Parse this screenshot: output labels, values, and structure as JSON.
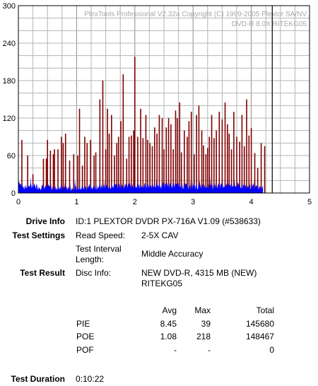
{
  "chart_data": {
    "type": "bar",
    "watermark_line1": "PlexTools Professional V2.32a Copyright (C) 1999-2005 Plextor SA/NV",
    "watermark_line2": "DVD-R    8.0X    RITEKG05",
    "xlim": [
      0,
      5
    ],
    "ylim": [
      0,
      300
    ],
    "x_ticks": [
      "0",
      "1",
      "2",
      "3",
      "4",
      "5"
    ],
    "y_ticks": [
      "0",
      "60",
      "120",
      "180",
      "240",
      "300"
    ],
    "grid": true,
    "cursor_x": 4.36,
    "colors": {
      "pie": "#0000ff",
      "poe": "#800000",
      "cursor": "#000000",
      "grid": "#b4b4b4"
    },
    "series": [
      {
        "name": "PIE",
        "approx_level": 8.45,
        "max": 39,
        "x": [
          0.0,
          0.03,
          0.06,
          0.1,
          0.2,
          0.35,
          0.5,
          0.75,
          1.0,
          1.2,
          1.5,
          1.8,
          2.0,
          2.3,
          2.6,
          3.0,
          3.3,
          3.6,
          4.0,
          4.2
        ],
        "values": [
          22,
          15,
          10,
          8,
          12,
          10,
          9,
          8,
          8,
          9,
          10,
          12,
          11,
          11,
          13,
          10,
          11,
          12,
          10,
          9
        ]
      },
      {
        "name": "POE",
        "x": [
          0.06,
          0.16,
          0.25,
          0.43,
          0.48,
          0.5,
          0.55,
          0.6,
          0.62,
          0.68,
          0.74,
          0.77,
          0.81,
          0.88,
          0.95,
          1.02,
          1.05,
          1.1,
          1.14,
          1.18,
          1.24,
          1.3,
          1.33,
          1.4,
          1.45,
          1.5,
          1.53,
          1.56,
          1.6,
          1.65,
          1.69,
          1.72,
          1.76,
          1.8,
          1.86,
          1.9,
          1.94,
          1.98,
          2.0,
          2.05,
          2.1,
          2.14,
          2.19,
          2.22,
          2.26,
          2.3,
          2.34,
          2.38,
          2.42,
          2.47,
          2.5,
          2.54,
          2.58,
          2.62,
          2.66,
          2.7,
          2.73,
          2.77,
          2.8,
          2.85,
          2.9,
          2.93,
          2.97,
          3.02,
          3.06,
          3.1,
          3.15,
          3.18,
          3.22,
          3.25,
          3.28,
          3.32,
          3.36,
          3.4,
          3.45,
          3.5,
          3.55,
          3.59,
          3.62,
          3.66,
          3.7,
          3.75,
          3.8,
          3.84,
          3.88,
          3.92,
          3.96,
          4.0,
          4.06,
          4.11,
          4.17,
          4.23
        ],
        "values": [
          85,
          60,
          30,
          55,
          55,
          85,
          68,
          62,
          70,
          70,
          90,
          80,
          95,
          52,
          62,
          60,
          135,
          44,
          90,
          80,
          85,
          60,
          65,
          150,
          180,
          70,
          135,
          95,
          125,
          60,
          80,
          90,
          115,
          190,
          55,
          90,
          92,
          100,
          218,
          90,
          135,
          88,
          125,
          85,
          80,
          75,
          105,
          95,
          125,
          120,
          70,
          105,
          120,
          110,
          70,
          132,
          120,
          145,
          65,
          100,
          90,
          115,
          130,
          62,
          125,
          140,
          100,
          76,
          62,
          72,
          90,
          125,
          88,
          100,
          130,
          118,
          145,
          110,
          95,
          70,
          130,
          90,
          82,
          125,
          75,
          150,
          92,
          104,
          64,
          40,
          80,
          75
        ]
      }
    ]
  },
  "info": {
    "drive_info_label": "Drive Info",
    "drive_info_value": "ID:1 PLEXTOR DVDR PX-716A V1.09 (#538633)",
    "test_settings_label": "Test Settings",
    "read_speed_label": "Read Speed:",
    "read_speed_value": "2-5X CAV",
    "interval_label_1": "Test Interval",
    "interval_label_2": "Length:",
    "interval_value": "Middle Accuracy",
    "test_result_label": "Test Result",
    "disc_info_label": "Disc Info:",
    "disc_info_line1": "NEW DVD-R, 4315 MB (NEW)",
    "disc_info_line2": "RITEKG05",
    "test_duration_label": "Test Duration",
    "test_duration_value": "0:10:22"
  },
  "stats": {
    "headers": {
      "avg": "Avg",
      "max": "Max",
      "total": "Total"
    },
    "rows": [
      {
        "name": "PIE",
        "avg": "8.45",
        "max": "39",
        "total": "145680"
      },
      {
        "name": "POE",
        "avg": "1.08",
        "max": "218",
        "total": "148467"
      },
      {
        "name": "POF",
        "avg": "-",
        "max": "-",
        "total": "0"
      }
    ]
  }
}
